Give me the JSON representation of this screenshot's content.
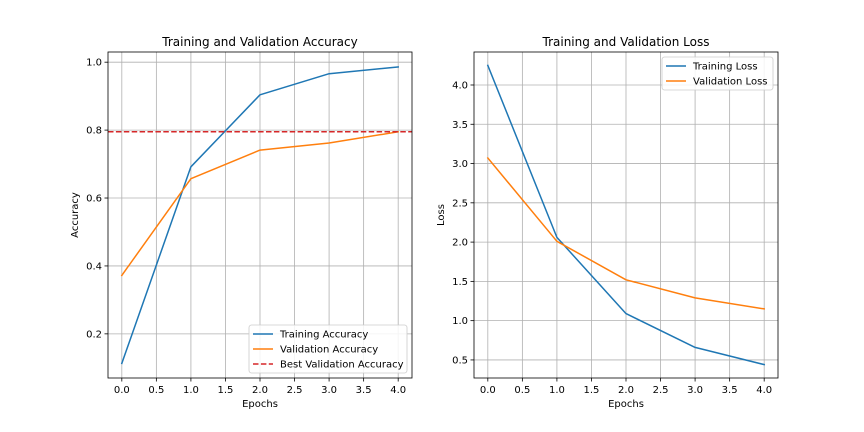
{
  "chart_data": [
    {
      "type": "line",
      "title": "Training and Validation Accuracy",
      "xlabel": "Epochs",
      "ylabel": "Accuracy",
      "xlim": [
        -0.2,
        4.2
      ],
      "ylim": [
        0.07,
        1.03
      ],
      "xticks": [
        0.0,
        0.5,
        1.0,
        1.5,
        2.0,
        2.5,
        3.0,
        3.5,
        4.0
      ],
      "xtick_labels": [
        "0.0",
        "0.5",
        "1.0",
        "1.5",
        "2.0",
        "2.5",
        "3.0",
        "3.5",
        "4.0"
      ],
      "yticks": [
        0.2,
        0.4,
        0.6,
        0.8,
        1.0
      ],
      "ytick_labels": [
        "0.2",
        "0.4",
        "0.6",
        "0.8",
        "1.0"
      ],
      "grid": true,
      "legend_position": "lower-right",
      "series": [
        {
          "name": "Training Accuracy",
          "color": "#1f77b4",
          "style": "solid",
          "x": [
            0,
            1,
            2,
            3,
            4
          ],
          "y": [
            0.113,
            0.692,
            0.904,
            0.966,
            0.986
          ]
        },
        {
          "name": "Validation Accuracy",
          "color": "#ff7f0e",
          "style": "solid",
          "x": [
            0,
            1,
            2,
            3,
            4
          ],
          "y": [
            0.372,
            0.657,
            0.741,
            0.762,
            0.795
          ]
        }
      ],
      "hlines": [
        {
          "name": "Best Validation Accuracy",
          "color": "#d62728",
          "style": "dashed",
          "y": 0.795
        }
      ]
    },
    {
      "type": "line",
      "title": "Training and Validation Loss",
      "xlabel": "Epochs",
      "ylabel": "Loss",
      "xlim": [
        -0.2,
        4.2
      ],
      "ylim": [
        0.27,
        4.42
      ],
      "xticks": [
        0.0,
        0.5,
        1.0,
        1.5,
        2.0,
        2.5,
        3.0,
        3.5,
        4.0
      ],
      "xtick_labels": [
        "0.0",
        "0.5",
        "1.0",
        "1.5",
        "2.0",
        "2.5",
        "3.0",
        "3.5",
        "4.0"
      ],
      "yticks": [
        0.5,
        1.0,
        1.5,
        2.0,
        2.5,
        3.0,
        3.5,
        4.0
      ],
      "ytick_labels": [
        "0.5",
        "1.0",
        "1.5",
        "2.0",
        "2.5",
        "3.0",
        "3.5",
        "4.0"
      ],
      "grid": true,
      "legend_position": "upper-right",
      "series": [
        {
          "name": "Training Loss",
          "color": "#1f77b4",
          "style": "solid",
          "x": [
            0,
            1,
            2,
            3,
            4
          ],
          "y": [
            4.25,
            2.06,
            1.09,
            0.66,
            0.44
          ]
        },
        {
          "name": "Validation Loss",
          "color": "#ff7f0e",
          "style": "solid",
          "x": [
            0,
            1,
            2,
            3,
            4
          ],
          "y": [
            3.07,
            2.01,
            1.52,
            1.29,
            1.15
          ]
        }
      ],
      "hlines": []
    }
  ]
}
